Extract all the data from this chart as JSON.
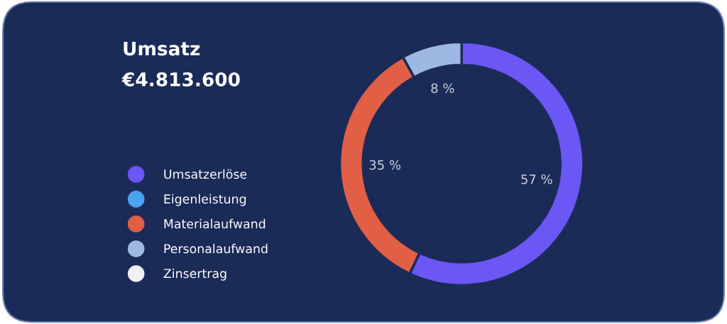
{
  "chart_data": {
    "type": "donut",
    "title": "Umsatz",
    "subtitle": "€4.813.600",
    "categories": [
      "Umsatzerlöse",
      "Eigenleistung",
      "Materialaufwand",
      "Personalaufwand",
      "Zinsertrag"
    ],
    "values": [
      57,
      0,
      35,
      8,
      0
    ],
    "colors": [
      "#6b57f5",
      "#4aa3f0",
      "#e05f45",
      "#9db8e3",
      "#f0f0f0"
    ],
    "value_labels": [
      "57 %",
      null,
      "35 %",
      "8 %",
      null
    ],
    "legend": "left"
  }
}
